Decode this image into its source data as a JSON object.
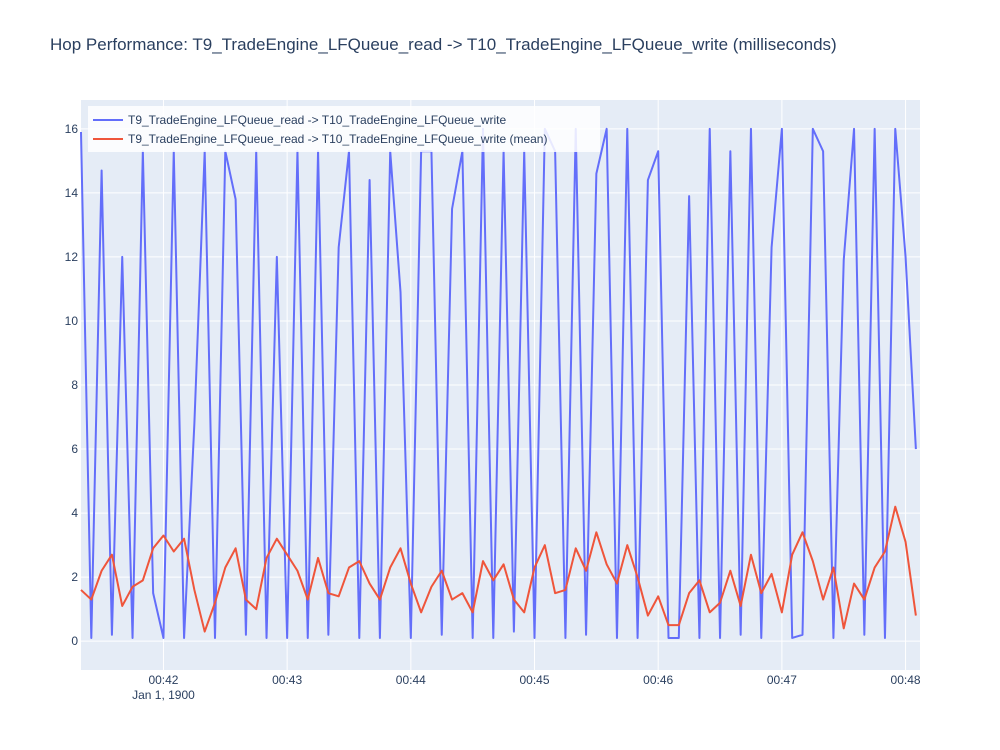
{
  "chart_data": {
    "type": "line",
    "title": "Hop Performance: T9_TradeEngine_LFQueue_read -> T10_TradeEngine_LFQueue_write (milliseconds)",
    "x_date_label": "Jan 1, 1900",
    "x": [
      "00:41:20",
      "00:41:25",
      "00:41:30",
      "00:41:35",
      "00:41:40",
      "00:41:45",
      "00:41:50",
      "00:41:55",
      "00:42:00",
      "00:42:05",
      "00:42:10",
      "00:42:15",
      "00:42:20",
      "00:42:25",
      "00:42:30",
      "00:42:35",
      "00:42:40",
      "00:42:45",
      "00:42:50",
      "00:42:55",
      "00:43:00",
      "00:43:05",
      "00:43:10",
      "00:43:15",
      "00:43:20",
      "00:43:25",
      "00:43:30",
      "00:43:35",
      "00:43:40",
      "00:43:45",
      "00:43:50",
      "00:43:55",
      "00:44:00",
      "00:44:05",
      "00:44:10",
      "00:44:15",
      "00:44:20",
      "00:44:25",
      "00:44:30",
      "00:44:35",
      "00:44:40",
      "00:44:45",
      "00:44:50",
      "00:44:55",
      "00:45:00",
      "00:45:05",
      "00:45:10",
      "00:45:15",
      "00:45:20",
      "00:45:25",
      "00:45:30",
      "00:45:35",
      "00:45:40",
      "00:45:45",
      "00:45:50",
      "00:45:55",
      "00:46:00",
      "00:46:05",
      "00:46:10",
      "00:46:15",
      "00:46:20",
      "00:46:25",
      "00:46:30",
      "00:46:35",
      "00:46:40",
      "00:46:45",
      "00:46:50",
      "00:46:55",
      "00:47:00",
      "00:47:05",
      "00:47:10",
      "00:47:15",
      "00:47:20",
      "00:47:25",
      "00:47:30",
      "00:47:35",
      "00:47:40",
      "00:47:45",
      "00:47:50",
      "00:47:55",
      "00:48:00",
      "00:48:05"
    ],
    "series": [
      {
        "name": "T9_TradeEngine_LFQueue_read -> T10_TradeEngine_LFQueue_write",
        "color": "#636efa",
        "values": [
          15.9,
          0.1,
          14.7,
          0.2,
          12,
          0.1,
          15.3,
          1.5,
          0.1,
          15.3,
          0.1,
          6.8,
          15.3,
          0.1,
          15.3,
          13.8,
          0.2,
          15.3,
          0.1,
          12,
          0.1,
          15.3,
          0.1,
          15.3,
          0.2,
          12.3,
          15.3,
          0.1,
          14.4,
          0.1,
          15.3,
          10.9,
          0.1,
          15.3,
          15.3,
          0.2,
          13.5,
          15.3,
          0.1,
          16,
          0.1,
          15.3,
          0.3,
          15.3,
          0.1,
          16,
          15.3,
          0.1,
          16,
          0.2,
          14.6,
          16,
          0.1,
          16,
          0.1,
          14.4,
          15.3,
          0.1,
          0.1,
          13.9,
          0.1,
          16,
          0.1,
          15.3,
          0.2,
          16,
          0.1,
          12.3,
          16,
          0.1,
          0.2,
          16,
          15.3,
          0.1,
          11.9,
          16,
          0.2,
          16,
          0.1,
          16,
          12,
          6
        ]
      },
      {
        "name": "T9_TradeEngine_LFQueue_read -> T10_TradeEngine_LFQueue_write (mean)",
        "color": "#ef553b",
        "values": [
          1.6,
          1.3,
          2.2,
          2.7,
          1.1,
          1.7,
          1.9,
          2.9,
          3.3,
          2.8,
          3.2,
          1.6,
          0.3,
          1.2,
          2.3,
          2.9,
          1.3,
          1.0,
          2.6,
          3.2,
          2.7,
          2.2,
          1.3,
          2.6,
          1.5,
          1.4,
          2.3,
          2.5,
          1.8,
          1.3,
          2.3,
          2.9,
          1.8,
          0.9,
          1.7,
          2.2,
          1.3,
          1.5,
          0.9,
          2.5,
          1.9,
          2.4,
          1.3,
          0.9,
          2.3,
          3.0,
          1.5,
          1.6,
          2.9,
          2.2,
          3.4,
          2.4,
          1.8,
          3.0,
          2.0,
          0.8,
          1.4,
          0.5,
          0.5,
          1.5,
          1.9,
          0.9,
          1.2,
          2.2,
          1.1,
          2.7,
          1.5,
          2.1,
          0.9,
          2.7,
          3.4,
          2.5,
          1.3,
          2.3,
          0.4,
          1.8,
          1.3,
          2.3,
          2.8,
          4.2,
          3.1,
          0.8
        ]
      }
    ],
    "xlim": [
      "00:41:20",
      "00:48:07"
    ],
    "xticks": [
      {
        "value": "00:42:00",
        "label": "00:42"
      },
      {
        "value": "00:43:00",
        "label": "00:43"
      },
      {
        "value": "00:44:00",
        "label": "00:44"
      },
      {
        "value": "00:45:00",
        "label": "00:45"
      },
      {
        "value": "00:46:00",
        "label": "00:46"
      },
      {
        "value": "00:47:00",
        "label": "00:47"
      },
      {
        "value": "00:48:00",
        "label": "00:48"
      }
    ],
    "ylim": [
      -0.9,
      16.9
    ],
    "yticks": [
      0,
      2,
      4,
      6,
      8,
      10,
      12,
      14,
      16
    ],
    "grid": true,
    "legend": "top-left"
  }
}
